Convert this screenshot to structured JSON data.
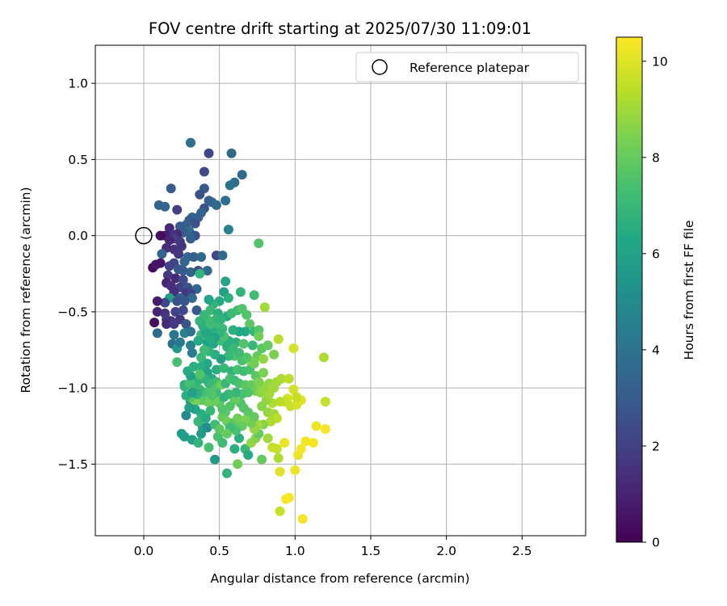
{
  "chart_data": {
    "type": "scatter",
    "title": "FOV centre drift starting at 2025/07/30 11:09:01",
    "xlabel": "Angular distance from reference (arcmin)",
    "ylabel": "Rotation from reference (arcmin)",
    "xlim": [
      -0.32,
      2.92
    ],
    "ylim": [
      -1.97,
      1.25
    ],
    "xticks": [
      0.0,
      0.5,
      1.0,
      1.5,
      2.0,
      2.5
    ],
    "yticks": [
      1.0,
      0.5,
      0.0,
      -0.5,
      -1.0,
      -1.5
    ],
    "xtick_labels": [
      "0.0",
      "0.5",
      "1.0",
      "1.5",
      "2.0",
      "2.5"
    ],
    "ytick_labels": [
      "1.0",
      "0.5",
      "0.0",
      "−0.5",
      "−1.0",
      "−1.5"
    ],
    "grid": true,
    "legend": {
      "position": "top-right",
      "entries": [
        {
          "label": "Reference platepar",
          "marker": "open-circle"
        }
      ]
    },
    "reference_point": {
      "x": 0.0,
      "y": 0.0
    },
    "colorbar": {
      "label": "Hours from first FF file",
      "colormap": "viridis",
      "range": [
        0,
        10.5
      ],
      "ticks": [
        0,
        2,
        4,
        6,
        8,
        10
      ],
      "tick_labels": [
        "0",
        "2",
        "4",
        "6",
        "8",
        "10"
      ]
    },
    "points": [
      [
        0.31,
        0.61,
        3.8
      ],
      [
        0.43,
        0.54,
        2.2
      ],
      [
        0.58,
        0.54,
        3.6
      ],
      [
        0.4,
        0.42,
        2.4
      ],
      [
        0.65,
        0.4,
        3.6
      ],
      [
        0.6,
        0.35,
        3.8
      ],
      [
        0.57,
        0.33,
        4.0
      ],
      [
        0.18,
        0.31,
        3.0
      ],
      [
        0.4,
        0.31,
        3.0
      ],
      [
        0.37,
        0.27,
        2.6
      ],
      [
        0.1,
        0.2,
        3.4
      ],
      [
        0.14,
        0.19,
        3.4
      ],
      [
        0.45,
        0.22,
        3.6
      ],
      [
        0.43,
        0.23,
        3.3
      ],
      [
        0.54,
        0.23,
        3.8
      ],
      [
        0.48,
        0.2,
        3.6
      ],
      [
        0.22,
        0.17,
        2.0
      ],
      [
        0.4,
        0.18,
        2.6
      ],
      [
        0.38,
        0.15,
        3.4
      ],
      [
        0.36,
        0.12,
        3.2
      ],
      [
        0.32,
        0.12,
        3.4
      ],
      [
        0.3,
        0.1,
        3.0
      ],
      [
        0.34,
        0.08,
        2.6
      ],
      [
        0.28,
        0.07,
        3.2
      ],
      [
        0.24,
        0.06,
        3.0
      ],
      [
        0.17,
        0.05,
        1.2
      ],
      [
        0.3,
        0.03,
        3.8
      ],
      [
        0.26,
        0.02,
        3.0
      ],
      [
        0.34,
        0.0,
        2.6
      ],
      [
        0.22,
        0.01,
        1.2
      ],
      [
        0.19,
        0.0,
        1.5
      ],
      [
        0.14,
        0.0,
        0.8
      ],
      [
        0.11,
        0.0,
        0.4
      ],
      [
        0.56,
        0.04,
        4.6
      ],
      [
        0.2,
        -0.02,
        2.0
      ],
      [
        0.24,
        -0.04,
        1.8
      ],
      [
        0.17,
        -0.03,
        1.1
      ],
      [
        0.31,
        -0.02,
        3.2
      ],
      [
        0.25,
        -0.07,
        1.6
      ],
      [
        0.2,
        -0.09,
        1.5
      ],
      [
        0.15,
        -0.08,
        1.3
      ],
      [
        0.23,
        -0.12,
        1.6
      ],
      [
        0.12,
        -0.12,
        3.4
      ],
      [
        0.29,
        -0.14,
        3.6
      ],
      [
        0.33,
        -0.14,
        3.2
      ],
      [
        0.38,
        -0.14,
        3.6
      ],
      [
        0.48,
        -0.13,
        2.2
      ],
      [
        0.52,
        -0.13,
        3.6
      ],
      [
        0.27,
        -0.17,
        3.4
      ],
      [
        0.2,
        -0.18,
        2.2
      ],
      [
        0.17,
        -0.2,
        2.0
      ],
      [
        0.11,
        -0.18,
        0.6
      ],
      [
        0.06,
        -0.21,
        0.2
      ],
      [
        0.08,
        -0.19,
        0.6
      ],
      [
        0.23,
        -0.22,
        2.8
      ],
      [
        0.26,
        -0.23,
        3.0
      ],
      [
        0.31,
        -0.24,
        3.4
      ],
      [
        0.36,
        -0.23,
        2.4
      ],
      [
        0.42,
        -0.23,
        3.6
      ],
      [
        0.16,
        -0.26,
        1.8
      ],
      [
        0.37,
        -0.25,
        6.8
      ],
      [
        0.21,
        -0.28,
        1.2
      ],
      [
        0.26,
        -0.29,
        2.4
      ],
      [
        0.15,
        -0.31,
        1.0
      ],
      [
        0.18,
        -0.33,
        1.4
      ],
      [
        0.24,
        -0.34,
        2.0
      ],
      [
        0.29,
        -0.34,
        2.6
      ],
      [
        0.35,
        -0.35,
        3.4
      ],
      [
        0.2,
        -0.37,
        1.4
      ],
      [
        0.28,
        -0.38,
        1.6
      ],
      [
        0.31,
        -0.38,
        2.0
      ],
      [
        0.32,
        -0.41,
        3.6
      ],
      [
        0.24,
        -0.41,
        3.2
      ],
      [
        0.17,
        -0.41,
        6.0
      ],
      [
        0.27,
        -0.43,
        2.8
      ],
      [
        0.22,
        -0.43,
        2.6
      ],
      [
        0.14,
        -0.44,
        2.2
      ],
      [
        0.09,
        -0.43,
        0.8
      ],
      [
        0.09,
        -0.5,
        1.0
      ],
      [
        0.14,
        -0.51,
        1.6
      ],
      [
        0.21,
        -0.5,
        2.0
      ],
      [
        0.26,
        -0.49,
        2.2
      ],
      [
        0.35,
        -0.49,
        3.0
      ],
      [
        0.15,
        -0.55,
        1.8
      ],
      [
        0.18,
        -0.56,
        1.6
      ],
      [
        0.24,
        -0.55,
        1.6
      ],
      [
        0.07,
        -0.57,
        0.4
      ],
      [
        0.15,
        -0.58,
        1.2
      ],
      [
        0.2,
        -0.58,
        1.8
      ],
      [
        0.28,
        -0.58,
        2.8
      ],
      [
        0.09,
        -0.64,
        3.6
      ],
      [
        0.2,
        -0.65,
        4.2
      ],
      [
        0.27,
        -0.64,
        4.6
      ],
      [
        0.31,
        -0.63,
        4.0
      ],
      [
        0.19,
        -0.71,
        3.8
      ],
      [
        0.22,
        -0.74,
        5.6
      ],
      [
        0.24,
        -0.7,
        4.2
      ],
      [
        0.31,
        -0.72,
        4.6
      ],
      [
        0.32,
        -0.77,
        4.4
      ],
      [
        0.36,
        -0.69,
        6.8
      ],
      [
        0.22,
        -0.83,
        7.4
      ],
      [
        0.27,
        -0.98,
        5.6
      ],
      [
        0.31,
        -1.09,
        5.6
      ],
      [
        0.28,
        -1.18,
        5.0
      ],
      [
        0.27,
        -1.32,
        6.0
      ],
      [
        0.32,
        -1.34,
        6.0
      ],
      [
        0.36,
        -1.36,
        6.8
      ],
      [
        0.39,
        -1.26,
        6.0
      ],
      [
        0.38,
        -1.3,
        5.8
      ],
      [
        0.42,
        -1.26,
        5.2
      ],
      [
        0.25,
        -1.3,
        5.8
      ],
      [
        0.43,
        -1.39,
        7.4
      ],
      [
        0.47,
        -1.47,
        5.6
      ],
      [
        0.49,
        -1.32,
        7.4
      ],
      [
        0.55,
        -1.56,
        6.8
      ],
      [
        0.52,
        -1.36,
        7.2
      ],
      [
        0.6,
        -1.4,
        6.6
      ],
      [
        0.62,
        -1.5,
        8.2
      ],
      [
        0.63,
        -1.33,
        6.6
      ],
      [
        0.67,
        -1.4,
        7.0
      ],
      [
        0.69,
        -1.44,
        6.4
      ],
      [
        0.71,
        -1.36,
        8.8
      ],
      [
        0.74,
        -1.33,
        8.6
      ],
      [
        0.78,
        -1.47,
        8.0
      ],
      [
        0.76,
        -1.3,
        8.0
      ],
      [
        0.82,
        -1.33,
        9.0
      ],
      [
        0.85,
        -1.39,
        9.6
      ],
      [
        0.88,
        -1.4,
        9.6
      ],
      [
        0.89,
        -1.46,
        9.2
      ],
      [
        0.9,
        -1.55,
        10.0
      ],
      [
        0.93,
        -1.36,
        10.2
      ],
      [
        1.0,
        -1.54,
        10.2
      ],
      [
        1.02,
        -1.44,
        10.2
      ],
      [
        1.04,
        -1.4,
        10.4
      ],
      [
        1.07,
        -1.35,
        10.3
      ],
      [
        1.12,
        -1.36,
        10.4
      ],
      [
        1.14,
        -1.25,
        10.2
      ],
      [
        1.2,
        -1.27,
        10.4
      ],
      [
        1.2,
        -1.09,
        9.6
      ],
      [
        1.19,
        -0.8,
        9.2
      ],
      [
        0.9,
        -1.81,
        9.6
      ],
      [
        0.94,
        -1.73,
        10.4
      ],
      [
        0.96,
        -1.72,
        10.4
      ],
      [
        1.05,
        -1.86,
        10.4
      ],
      [
        0.99,
        -0.74,
        9.8
      ],
      [
        0.89,
        -0.68,
        9.4
      ],
      [
        0.8,
        -0.47,
        9.0
      ],
      [
        0.76,
        -0.05,
        7.6
      ],
      [
        0.73,
        -0.39,
        7.2
      ],
      [
        0.64,
        -0.37,
        6.8
      ],
      [
        0.54,
        -0.3,
        6.2
      ],
      [
        0.53,
        -0.37,
        6.0
      ],
      [
        0.56,
        -0.41,
        6.6
      ],
      [
        0.5,
        -0.43,
        6.4
      ],
      [
        0.46,
        -0.45,
        6.8
      ],
      [
        0.43,
        -0.42,
        6.2
      ],
      [
        0.44,
        -0.49,
        7.0
      ],
      [
        0.42,
        -0.55,
        7.2
      ],
      [
        0.46,
        -0.56,
        7.4
      ],
      [
        0.49,
        -0.51,
        6.6
      ],
      [
        0.55,
        -0.53,
        6.4
      ],
      [
        0.58,
        -0.51,
        7.2
      ],
      [
        0.62,
        -0.49,
        7.2
      ],
      [
        0.65,
        -0.48,
        7.6
      ],
      [
        0.68,
        -0.52,
        7.6
      ],
      [
        0.7,
        -0.58,
        7.8
      ],
      [
        0.73,
        -0.63,
        7.0
      ],
      [
        0.76,
        -0.62,
        7.6
      ],
      [
        0.67,
        -0.63,
        6.4
      ],
      [
        0.63,
        -0.63,
        6.2
      ],
      [
        0.59,
        -0.62,
        6.6
      ],
      [
        0.52,
        -0.61,
        7.0
      ],
      [
        0.49,
        -0.59,
        7.2
      ],
      [
        0.45,
        -0.62,
        6.6
      ],
      [
        0.4,
        -0.61,
        6.8
      ],
      [
        0.38,
        -0.65,
        7.0
      ],
      [
        0.36,
        -0.69,
        6.4
      ],
      [
        0.42,
        -0.7,
        6.0
      ],
      [
        0.46,
        -0.71,
        6.2
      ],
      [
        0.51,
        -0.69,
        7.2
      ],
      [
        0.55,
        -0.73,
        6.6
      ],
      [
        0.61,
        -0.7,
        6.6
      ],
      [
        0.66,
        -0.71,
        7.6
      ],
      [
        0.72,
        -0.72,
        7.0
      ],
      [
        0.78,
        -0.74,
        7.8
      ],
      [
        0.75,
        -0.79,
        8.0
      ],
      [
        0.7,
        -0.82,
        8.6
      ],
      [
        0.65,
        -0.82,
        7.4
      ],
      [
        0.6,
        -0.79,
        7.6
      ],
      [
        0.56,
        -0.79,
        7.0
      ],
      [
        0.51,
        -0.81,
        6.0
      ],
      [
        0.47,
        -0.78,
        6.6
      ],
      [
        0.43,
        -0.76,
        6.8
      ],
      [
        0.4,
        -0.75,
        7.2
      ],
      [
        0.38,
        -0.8,
        7.0
      ],
      [
        0.42,
        -0.84,
        6.2
      ],
      [
        0.48,
        -0.88,
        6.6
      ],
      [
        0.53,
        -0.87,
        7.0
      ],
      [
        0.58,
        -0.89,
        6.8
      ],
      [
        0.62,
        -0.88,
        7.4
      ],
      [
        0.66,
        -0.89,
        7.2
      ],
      [
        0.7,
        -0.88,
        7.4
      ],
      [
        0.74,
        -0.92,
        7.8
      ],
      [
        0.79,
        -0.9,
        8.4
      ],
      [
        0.83,
        -0.97,
        8.8
      ],
      [
        0.86,
        -1.0,
        9.0
      ],
      [
        0.88,
        -0.96,
        9.0
      ],
      [
        0.91,
        -0.94,
        9.2
      ],
      [
        0.96,
        -0.94,
        9.4
      ],
      [
        0.99,
        -1.01,
        9.8
      ],
      [
        0.95,
        -1.07,
        9.8
      ],
      [
        0.93,
        -1.09,
        9.6
      ],
      [
        0.97,
        -1.12,
        9.6
      ],
      [
        1.01,
        -1.11,
        9.8
      ],
      [
        1.04,
        -1.08,
        10.0
      ],
      [
        1.01,
        -1.06,
        9.6
      ],
      [
        0.9,
        -1.09,
        9.4
      ],
      [
        0.85,
        -1.1,
        9.2
      ],
      [
        0.81,
        -1.08,
        8.8
      ],
      [
        0.78,
        -1.12,
        8.6
      ],
      [
        0.82,
        -1.16,
        8.8
      ],
      [
        0.86,
        -1.17,
        9.0
      ],
      [
        0.88,
        -1.2,
        9.4
      ],
      [
        0.84,
        -1.22,
        9.2
      ],
      [
        0.79,
        -1.24,
        8.6
      ],
      [
        0.75,
        -1.24,
        9.0
      ],
      [
        0.73,
        -1.27,
        8.8
      ],
      [
        0.71,
        -1.23,
        8.2
      ],
      [
        0.73,
        -1.19,
        8.0
      ],
      [
        0.69,
        -1.16,
        7.8
      ],
      [
        0.66,
        -1.13,
        7.6
      ],
      [
        0.64,
        -1.1,
        7.6
      ],
      [
        0.6,
        -1.08,
        8.0
      ],
      [
        0.57,
        -1.12,
        7.6
      ],
      [
        0.54,
        -1.16,
        7.8
      ],
      [
        0.52,
        -1.19,
        8.0
      ],
      [
        0.55,
        -1.22,
        8.2
      ],
      [
        0.59,
        -1.23,
        7.8
      ],
      [
        0.62,
        -1.2,
        8.2
      ],
      [
        0.67,
        -1.21,
        8.4
      ],
      [
        0.65,
        -1.25,
        8.0
      ],
      [
        0.61,
        -1.28,
        7.4
      ],
      [
        0.57,
        -1.26,
        7.2
      ],
      [
        0.55,
        -1.3,
        8.0
      ],
      [
        0.52,
        -1.14,
        7.6
      ],
      [
        0.5,
        -1.1,
        7.8
      ],
      [
        0.47,
        -1.08,
        8.2
      ],
      [
        0.44,
        -1.1,
        8.0
      ],
      [
        0.42,
        -1.09,
        8.2
      ],
      [
        0.38,
        -1.08,
        7.8
      ],
      [
        0.34,
        -1.09,
        8.4
      ],
      [
        0.31,
        -1.06,
        7.6
      ],
      [
        0.28,
        -1.05,
        6.6
      ],
      [
        0.27,
        -0.99,
        6.8
      ],
      [
        0.3,
        -0.97,
        7.4
      ],
      [
        0.34,
        -1.0,
        7.2
      ],
      [
        0.36,
        -0.95,
        6.8
      ],
      [
        0.31,
        -0.92,
        6.0
      ],
      [
        0.29,
        -0.89,
        6.4
      ],
      [
        0.33,
        -0.86,
        6.6
      ],
      [
        0.38,
        -0.86,
        6.6
      ],
      [
        0.42,
        -0.9,
        6.0
      ],
      [
        0.45,
        -0.94,
        6.4
      ],
      [
        0.48,
        -0.96,
        7.2
      ],
      [
        0.51,
        -0.98,
        8.2
      ],
      [
        0.54,
        -0.97,
        7.0
      ],
      [
        0.57,
        -0.94,
        7.4
      ],
      [
        0.6,
        -0.95,
        7.2
      ],
      [
        0.63,
        -0.97,
        7.4
      ],
      [
        0.67,
        -0.98,
        7.8
      ],
      [
        0.71,
        -0.98,
        8.0
      ],
      [
        0.74,
        -1.02,
        8.2
      ],
      [
        0.77,
        -1.03,
        8.6
      ],
      [
        0.8,
        -1.02,
        8.8
      ],
      [
        0.83,
        -1.04,
        9.0
      ],
      [
        0.79,
        -0.99,
        8.8
      ],
      [
        0.76,
        -0.96,
        8.4
      ],
      [
        0.69,
        -1.03,
        7.6
      ],
      [
        0.65,
        -1.04,
        7.4
      ],
      [
        0.61,
        -1.03,
        7.0
      ],
      [
        0.56,
        -1.04,
        7.0
      ],
      [
        0.53,
        -1.06,
        6.8
      ],
      [
        0.48,
        -1.03,
        7.2
      ],
      [
        0.45,
        -1.05,
        7.6
      ],
      [
        0.4,
        -1.03,
        7.4
      ],
      [
        0.37,
        -1.01,
        7.0
      ],
      [
        0.35,
        -1.04,
        6.6
      ],
      [
        0.32,
        -1.03,
        6.0
      ],
      [
        0.45,
        -1.0,
        7.6
      ],
      [
        0.43,
        -0.97,
        7.0
      ],
      [
        0.4,
        -0.94,
        6.8
      ],
      [
        0.37,
        -0.91,
        7.6
      ],
      [
        0.44,
        -1.15,
        7.0
      ],
      [
        0.38,
        -1.17,
        6.6
      ],
      [
        0.34,
        -1.14,
        6.2
      ],
      [
        0.3,
        -1.13,
        5.8
      ],
      [
        0.36,
        -1.22,
        7.0
      ],
      [
        0.41,
        -1.2,
        6.4
      ],
      [
        0.47,
        -1.24,
        7.2
      ],
      [
        0.5,
        -1.27,
        7.8
      ],
      [
        0.76,
        -0.66,
        8.2
      ],
      [
        0.82,
        -0.72,
        8.0
      ],
      [
        0.86,
        -0.78,
        8.4
      ],
      [
        0.79,
        -0.81,
        8.8
      ],
      [
        0.73,
        -0.84,
        8.2
      ],
      [
        0.68,
        -0.8,
        7.6
      ],
      [
        0.63,
        -0.77,
        7.2
      ],
      [
        0.59,
        -0.74,
        7.0
      ],
      [
        0.56,
        -0.69,
        6.6
      ],
      [
        0.53,
        -0.66,
        7.4
      ],
      [
        0.5,
        -0.64,
        6.8
      ],
      [
        0.47,
        -0.67,
        6.0
      ],
      [
        0.44,
        -0.68,
        6.4
      ],
      [
        0.41,
        -0.64,
        6.2
      ],
      [
        0.39,
        -0.59,
        6.6
      ],
      [
        0.37,
        -0.56,
        6.8
      ],
      [
        0.4,
        -0.52,
        7.0
      ],
      [
        0.44,
        -0.58,
        7.2
      ],
      [
        0.48,
        -0.55,
        7.0
      ],
      [
        0.51,
        -0.55,
        6.8
      ]
    ]
  }
}
